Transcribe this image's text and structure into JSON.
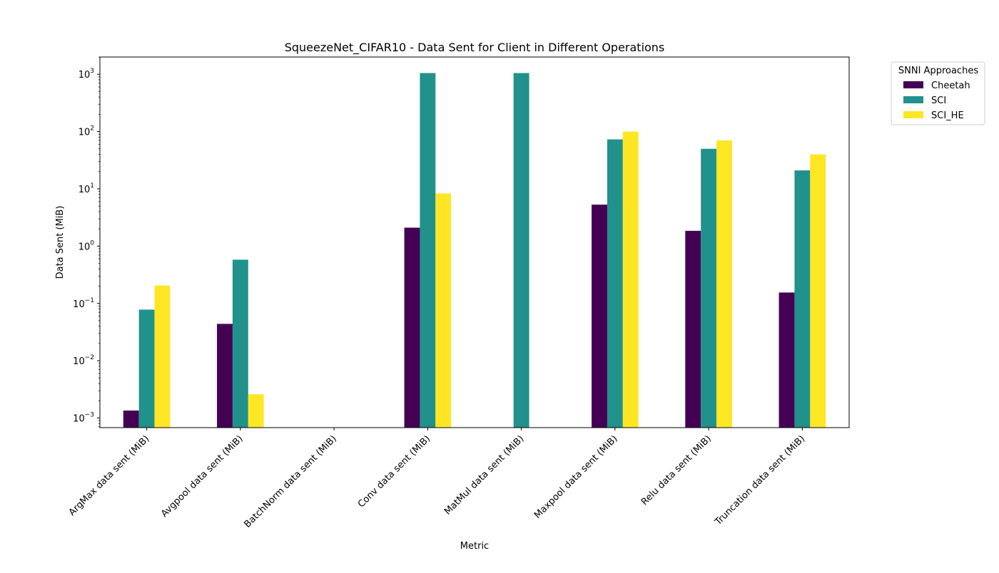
{
  "chart_data": {
    "type": "bar",
    "title": "SqueezeNet_CIFAR10 - Data Sent for Client in Different Operations",
    "xlabel": "Metric",
    "ylabel": "Data Sent (MiB)",
    "yscale": "log",
    "ylim": [
      0.00068,
      2000
    ],
    "yticks": [
      {
        "value": 0.001,
        "base": "10",
        "exp": "−3"
      },
      {
        "value": 0.01,
        "base": "10",
        "exp": "−2"
      },
      {
        "value": 0.1,
        "base": "10",
        "exp": "−1"
      },
      {
        "value": 1,
        "base": "10",
        "exp": "0"
      },
      {
        "value": 10,
        "base": "10",
        "exp": "1"
      },
      {
        "value": 100,
        "base": "10",
        "exp": "2"
      },
      {
        "value": 1000,
        "base": "10",
        "exp": "3"
      }
    ],
    "categories": [
      "ArgMax data sent (MiB)",
      "Avgpool data sent (MiB)",
      "BatchNorm data sent (MiB)",
      "Conv data sent (MiB)",
      "MatMul data sent (MiB)",
      "Maxpool data sent (MiB)",
      "Relu data sent (MiB)",
      "Truncation data sent (MiB)"
    ],
    "legend": {
      "title": "SNNI Approaches",
      "placement": "outside-top-right"
    },
    "series": [
      {
        "name": "Cheetah",
        "color": "#440154",
        "values": [
          0.00135,
          0.044,
          null,
          2.1,
          null,
          5.3,
          1.85,
          0.155
        ]
      },
      {
        "name": "SCI",
        "color": "#21918c",
        "values": [
          0.078,
          0.58,
          null,
          1050,
          1050,
          73,
          50,
          21
        ]
      },
      {
        "name": "SCI_HE",
        "color": "#fde725",
        "values": [
          0.205,
          0.0026,
          null,
          8.3,
          null,
          100,
          70,
          40
        ]
      }
    ]
  }
}
